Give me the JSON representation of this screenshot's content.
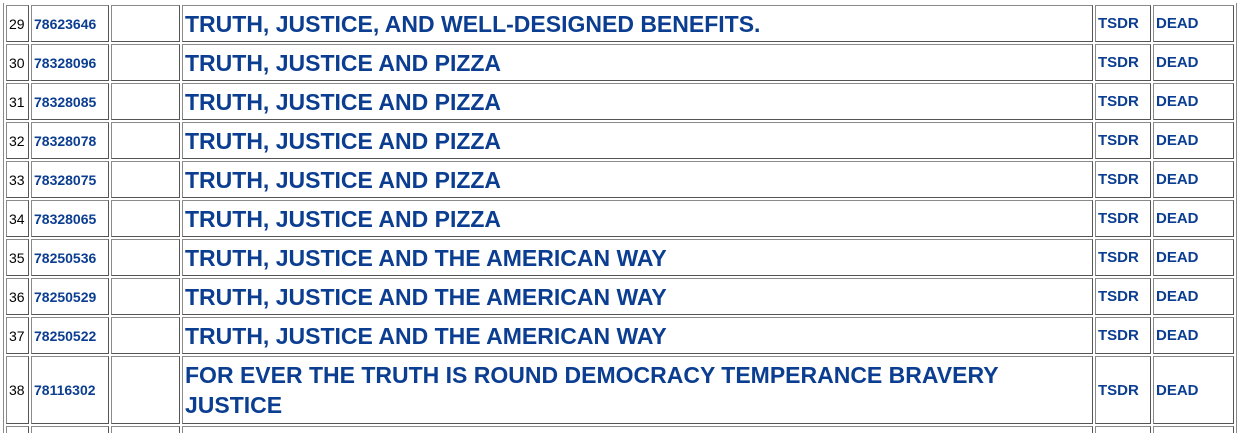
{
  "rows": [
    {
      "num": "29",
      "serial": "78623646",
      "mark": "TRUTH, JUSTICE, AND WELL-DESIGNED BENEFITS.",
      "tsdr": "TSDR",
      "status": "DEAD"
    },
    {
      "num": "30",
      "serial": "78328096",
      "mark": "TRUTH, JUSTICE AND PIZZA",
      "tsdr": "TSDR",
      "status": "DEAD"
    },
    {
      "num": "31",
      "serial": "78328085",
      "mark": "TRUTH, JUSTICE AND PIZZA",
      "tsdr": "TSDR",
      "status": "DEAD"
    },
    {
      "num": "32",
      "serial": "78328078",
      "mark": "TRUTH, JUSTICE AND PIZZA",
      "tsdr": "TSDR",
      "status": "DEAD"
    },
    {
      "num": "33",
      "serial": "78328075",
      "mark": "TRUTH, JUSTICE AND PIZZA",
      "tsdr": "TSDR",
      "status": "DEAD"
    },
    {
      "num": "34",
      "serial": "78328065",
      "mark": "TRUTH, JUSTICE AND PIZZA",
      "tsdr": "TSDR",
      "status": "DEAD"
    },
    {
      "num": "35",
      "serial": "78250536",
      "mark": "TRUTH, JUSTICE AND THE AMERICAN WAY",
      "tsdr": "TSDR",
      "status": "DEAD"
    },
    {
      "num": "36",
      "serial": "78250529",
      "mark": "TRUTH, JUSTICE AND THE AMERICAN WAY",
      "tsdr": "TSDR",
      "status": "DEAD"
    },
    {
      "num": "37",
      "serial": "78250522",
      "mark": "TRUTH, JUSTICE AND THE AMERICAN WAY",
      "tsdr": "TSDR",
      "status": "DEAD"
    },
    {
      "num": "38",
      "serial": "78116302",
      "mark": "FOR EVER THE TRUTH IS ROUND DEMOCRACY TEMPERANCE BRAVERY JUSTICE",
      "tsdr": "TSDR",
      "status": "DEAD"
    }
  ]
}
